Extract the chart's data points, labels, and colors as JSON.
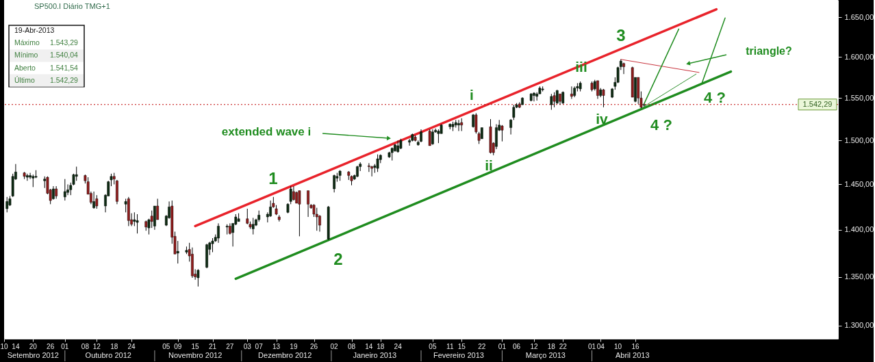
{
  "chart_data": {
    "type": "candlestick",
    "title": "SP500.I Diário TMG+1",
    "x": [
      "2012-09-11",
      "2012-09-12",
      "2012-09-13",
      "2012-09-14",
      "2012-09-17",
      "2012-09-18",
      "2012-09-19",
      "2012-09-20",
      "2012-09-21",
      "2012-09-24",
      "2012-09-25",
      "2012-09-26",
      "2012-09-27",
      "2012-09-28",
      "2012-10-01",
      "2012-10-02",
      "2012-10-03",
      "2012-10-04",
      "2012-10-05",
      "2012-10-08",
      "2012-10-09",
      "2012-10-10",
      "2012-10-11",
      "2012-10-12",
      "2012-10-15",
      "2012-10-16",
      "2012-10-17",
      "2012-10-18",
      "2012-10-19",
      "2012-10-22",
      "2012-10-23",
      "2012-10-24",
      "2012-10-25",
      "2012-10-26",
      "2012-10-29",
      "2012-10-30",
      "2012-10-31",
      "2012-11-01",
      "2012-11-02",
      "2012-11-05",
      "2012-11-06",
      "2012-11-07",
      "2012-11-08",
      "2012-11-09",
      "2012-11-12",
      "2012-11-13",
      "2012-11-14",
      "2012-11-15",
      "2012-11-16",
      "2012-11-19",
      "2012-11-20",
      "2012-11-21",
      "2012-11-22",
      "2012-11-23",
      "2012-11-26",
      "2012-11-27",
      "2012-11-28",
      "2012-11-29",
      "2012-11-30",
      "2012-12-03",
      "2012-12-04",
      "2012-12-05",
      "2012-12-06",
      "2012-12-07",
      "2012-12-10",
      "2012-12-11",
      "2012-12-12",
      "2012-12-13",
      "2012-12-14",
      "2012-12-17",
      "2012-12-18",
      "2012-12-19",
      "2012-12-20",
      "2012-12-21",
      "2012-12-24",
      "2012-12-25",
      "2012-12-26",
      "2012-12-27",
      "2012-12-28",
      "2012-12-31",
      "2013-01-02",
      "2013-01-03",
      "2013-01-04",
      "2013-01-07",
      "2013-01-08",
      "2013-01-09",
      "2013-01-10",
      "2013-01-11",
      "2013-01-14",
      "2013-01-15",
      "2013-01-16",
      "2013-01-17",
      "2013-01-18",
      "2013-01-21",
      "2013-01-22",
      "2013-01-23",
      "2013-01-24",
      "2013-01-25",
      "2013-01-28",
      "2013-01-29",
      "2013-01-30",
      "2013-01-31",
      "2013-02-01",
      "2013-02-04",
      "2013-02-05",
      "2013-02-06",
      "2013-02-07",
      "2013-02-08",
      "2013-02-11",
      "2013-02-12",
      "2013-02-13",
      "2013-02-14",
      "2013-02-15",
      "2013-02-19",
      "2013-02-20",
      "2013-02-21",
      "2013-02-22",
      "2013-02-25",
      "2013-02-26",
      "2013-02-27",
      "2013-02-28",
      "2013-03-01",
      "2013-03-04",
      "2013-03-05",
      "2013-03-06",
      "2013-03-07",
      "2013-03-08",
      "2013-03-11",
      "2013-03-12",
      "2013-03-13",
      "2013-03-14",
      "2013-03-15",
      "2013-03-18",
      "2013-03-19",
      "2013-03-20",
      "2013-03-21",
      "2013-03-22",
      "2013-03-25",
      "2013-03-26",
      "2013-03-27",
      "2013-03-28",
      "2013-04-01",
      "2013-04-02",
      "2013-04-03",
      "2013-04-04",
      "2013-04-05",
      "2013-04-08",
      "2013-04-09",
      "2013-04-10",
      "2013-04-11",
      "2013-04-12",
      "2013-04-15",
      "2013-04-16",
      "2013-04-17",
      "2013-04-18",
      "2013-04-19"
    ],
    "ohlc": [
      [
        1423,
        1436,
        1419,
        1431
      ],
      [
        1427,
        1437,
        1426,
        1434
      ],
      [
        1437,
        1462,
        1436,
        1459
      ],
      [
        1456,
        1473,
        1455,
        1464
      ],
      [
        1463,
        1464,
        1456,
        1459
      ],
      [
        1458,
        1462,
        1454,
        1460
      ],
      [
        1458,
        1463,
        1456,
        1460
      ],
      [
        1457,
        1461,
        1447,
        1459
      ],
      [
        1458,
        1466,
        1457,
        1459
      ],
      [
        1454,
        1459,
        1446,
        1456
      ],
      [
        1458,
        1459,
        1439,
        1440
      ],
      [
        1444,
        1445,
        1428,
        1432
      ],
      [
        1434,
        1448,
        1433,
        1445
      ],
      [
        1445,
        1448,
        1434,
        1437
      ],
      [
        1436,
        1456,
        1432,
        1442
      ],
      [
        1441,
        1450,
        1438,
        1444
      ],
      [
        1444,
        1452,
        1438,
        1449
      ],
      [
        1450,
        1462,
        1449,
        1461
      ],
      [
        1459,
        1470,
        1454,
        1461
      ],
      [
        1460,
        1461,
        1451,
        1454
      ],
      [
        1453,
        1458,
        1439,
        1439
      ],
      [
        1440,
        1442,
        1428,
        1430
      ],
      [
        1424,
        1442,
        1423,
        1431
      ],
      [
        1434,
        1438,
        1423,
        1426
      ],
      [
        1426,
        1439,
        1419,
        1438
      ],
      [
        1437,
        1454,
        1437,
        1453
      ],
      [
        1455,
        1462,
        1448,
        1459
      ],
      [
        1459,
        1463,
        1450,
        1456
      ],
      [
        1454,
        1455,
        1428,
        1431
      ],
      [
        1428,
        1434,
        1419,
        1431
      ],
      [
        1434,
        1436,
        1404,
        1410
      ],
      [
        1411,
        1418,
        1404,
        1406
      ],
      [
        1409,
        1419,
        1404,
        1411
      ],
      [
        1408,
        1417,
        1396,
        1410
      ],
      [
        1409,
        1410,
        1399,
        1403
      ],
      [
        1402,
        1412,
        1395,
        1411
      ],
      [
        1415,
        1421,
        1402,
        1409
      ],
      [
        1404,
        1426,
        1400,
        1426
      ],
      [
        1426,
        1434,
        1411,
        1411
      ],
      [
        1405,
        1416,
        1404,
        1415
      ],
      [
        1413,
        1431,
        1412,
        1425
      ],
      [
        1426,
        1432,
        1385,
        1392
      ],
      [
        1393,
        1398,
        1374,
        1374
      ],
      [
        1375,
        1388,
        1364,
        1377
      ],
      [
        1376,
        1382,
        1374,
        1378
      ],
      [
        1379,
        1386,
        1366,
        1372
      ],
      [
        1374,
        1381,
        1349,
        1351
      ],
      [
        1353,
        1358,
        1347,
        1350
      ],
      [
        1349,
        1358,
        1340,
        1357
      ],
      [
        1360,
        1385,
        1359,
        1384
      ],
      [
        1379,
        1387,
        1373,
        1386
      ],
      [
        1385,
        1391,
        1376,
        1388
      ],
      [
        1388,
        1395,
        1387,
        1392
      ],
      [
        1391,
        1407,
        1386,
        1404
      ],
      [
        1403,
        1406,
        1395,
        1404
      ],
      [
        1404,
        1407,
        1395,
        1396
      ],
      [
        1397,
        1407,
        1382,
        1407
      ],
      [
        1406,
        1417,
        1405,
        1414
      ],
      [
        1409,
        1418,
        1409,
        1412
      ],
      [
        1412,
        1423,
        1406,
        1407
      ],
      [
        1406,
        1409,
        1401,
        1403
      ],
      [
        1401,
        1413,
        1395,
        1406
      ],
      [
        1405,
        1412,
        1404,
        1411
      ],
      [
        1411,
        1421,
        1409,
        1416
      ],
      [
        1414,
        1419,
        1408,
        1417
      ],
      [
        1415,
        1432,
        1414,
        1425
      ],
      [
        1429,
        1436,
        1424,
        1425
      ],
      [
        1423,
        1427,
        1416,
        1417
      ],
      [
        1414,
        1416,
        1409,
        1411
      ],
      [
        1419,
        1429,
        1418,
        1428
      ],
      [
        1431,
        1448,
        1428,
        1445
      ],
      [
        1442,
        1448,
        1432,
        1433
      ],
      [
        1441,
        1442,
        1429,
        1429
      ],
      [
        1443,
        1443,
        1393,
        1428
      ],
      [
        1443,
        1443,
        1414,
        1428
      ],
      [
        1427,
        1428,
        1423,
        1424
      ],
      [
        1427,
        1428,
        1414,
        1417
      ],
      [
        1417,
        1424,
        1399,
        1414
      ],
      [
        1415,
        1416,
        1398,
        1405
      ],
      [
        1390,
        1426,
        1389,
        1425
      ],
      [
        1445,
        1461,
        1441,
        1460
      ],
      [
        1457,
        1463,
        1453,
        1459
      ],
      [
        1460,
        1466,
        1454,
        1465
      ],
      [
        1464,
        1465,
        1455,
        1460
      ],
      [
        1459,
        1460,
        1449,
        1454
      ],
      [
        1456,
        1461,
        1455,
        1460
      ],
      [
        1459,
        1471,
        1458,
        1470
      ],
      [
        1470,
        1475,
        1465,
        1473
      ],
      [
        1471,
        1474,
        1464,
        1470
      ],
      [
        1470,
        1471,
        1459,
        1468
      ],
      [
        1469,
        1473,
        1463,
        1471
      ],
      [
        1468,
        1484,
        1464,
        1479
      ],
      [
        1478,
        1484,
        1474,
        1483
      ],
      [
        1481,
        1487,
        1480,
        1486
      ],
      [
        1486,
        1492,
        1477,
        1491
      ],
      [
        1488,
        1496,
        1487,
        1495
      ],
      [
        1487,
        1500,
        1486,
        1494
      ],
      [
        1491,
        1502,
        1490,
        1500
      ],
      [
        1498,
        1502,
        1494,
        1500
      ],
      [
        1500,
        1508,
        1499,
        1507
      ],
      [
        1504,
        1506,
        1499,
        1500
      ],
      [
        1495,
        1500,
        1494,
        1498
      ],
      [
        1499,
        1513,
        1498,
        1510
      ],
      [
        1511,
        1513,
        1494,
        1494
      ],
      [
        1496,
        1513,
        1495,
        1510
      ],
      [
        1510,
        1514,
        1509,
        1512
      ],
      [
        1508,
        1513,
        1497,
        1511
      ],
      [
        1508,
        1519,
        1508,
        1518
      ],
      [
        1516,
        1520,
        1513,
        1519
      ],
      [
        1516,
        1522,
        1511,
        1519
      ],
      [
        1518,
        1524,
        1515,
        1521
      ],
      [
        1518,
        1524,
        1511,
        1520
      ],
      [
        1521,
        1526,
        1511,
        1518
      ],
      [
        1516,
        1531,
        1515,
        1530
      ],
      [
        1530,
        1532,
        1508,
        1510
      ],
      [
        1508,
        1510,
        1496,
        1500
      ],
      [
        1502,
        1515,
        1502,
        1515
      ],
      [
        1516,
        1525,
        1485,
        1486
      ],
      [
        1497,
        1498,
        1483,
        1486
      ],
      [
        1493,
        1519,
        1490,
        1515
      ],
      [
        1512,
        1524,
        1511,
        1518
      ],
      [
        1517,
        1518,
        1499,
        1512
      ],
      [
        1515,
        1525,
        1507,
        1524
      ],
      [
        1527,
        1542,
        1524,
        1539
      ],
      [
        1539,
        1544,
        1538,
        1542
      ],
      [
        1543,
        1545,
        1538,
        1539
      ],
      [
        1542,
        1551,
        1542,
        1550
      ],
      [
        1547,
        1556,
        1546,
        1555
      ],
      [
        1553,
        1557,
        1546,
        1556
      ],
      [
        1552,
        1557,
        1547,
        1555
      ],
      [
        1555,
        1564,
        1555,
        1562
      ],
      [
        1560,
        1564,
        1558,
        1561
      ],
      [
        1542,
        1555,
        1536,
        1552
      ],
      [
        1553,
        1557,
        1539,
        1546
      ],
      [
        1544,
        1560,
        1543,
        1559
      ],
      [
        1555,
        1555,
        1542,
        1546
      ],
      [
        1544,
        1558,
        1543,
        1557
      ],
      [
        1555,
        1564,
        1549,
        1552
      ],
      [
        1553,
        1564,
        1551,
        1562
      ],
      [
        1562,
        1568,
        1558,
        1564
      ],
      [
        1561,
        1570,
        1558,
        1568
      ],
      [
        1568,
        1570,
        1558,
        1560
      ],
      [
        1561,
        1572,
        1559,
        1570
      ],
      [
        1571,
        1571,
        1549,
        1553
      ],
      [
        1553,
        1562,
        1551,
        1560
      ],
      [
        1560,
        1561,
        1539,
        1553
      ],
      [
        1551,
        1562,
        1550,
        1561
      ],
      [
        1564,
        1575,
        1560,
        1569
      ],
      [
        1569,
        1588,
        1568,
        1587
      ],
      [
        1588,
        1597,
        1584,
        1595
      ],
      [
        1592,
        1593,
        1579,
        1588
      ],
      [
        1587,
        1588,
        1551,
        1551
      ],
      [
        1546,
        1575,
        1545,
        1575
      ],
      [
        1575,
        1575,
        1543,
        1550
      ],
      [
        1550,
        1558,
        1538,
        1539
      ],
      [
        1541.54,
        1543.29,
        1540.04,
        1542.29
      ]
    ],
    "colors": [
      "#0d2a12",
      "#0d2a12",
      "#0d2a12",
      "#0d2a12",
      "#8e1b1b",
      "#0d2a12",
      "#0d2a12",
      "#0d2a12",
      "#0d2a12",
      "#0d2a12",
      "#8e1b1b",
      "#8e1b1b",
      "#0d2a12",
      "#8e1b1b",
      "#0d2a12",
      "#0d2a12",
      "#0d2a12",
      "#0d2a12",
      "#0d2a12",
      "#8e1b1b",
      "#8e1b1b",
      "#8e1b1b",
      "#0d2a12",
      "#8e1b1b",
      "#0d2a12",
      "#0d2a12",
      "#0d2a12",
      "#8e1b1b",
      "#8e1b1b",
      "#0d2a12",
      "#8e1b1b",
      "#8e1b1b",
      "#0d2a12",
      "#0d2a12",
      "#8e1b1b",
      "#0d2a12",
      "#8e1b1b",
      "#0d2a12",
      "#8e1b1b",
      "#0d2a12",
      "#0d2a12",
      "#8e1b1b",
      "#8e1b1b",
      "#0d2a12",
      "#0d2a12",
      "#8e1b1b",
      "#8e1b1b",
      "#8e1b1b",
      "#0d2a12",
      "#0d2a12",
      "#0d2a12",
      "#0d2a12",
      "#0d2a12",
      "#0d2a12",
      "#0d2a12",
      "#8e1b1b",
      "#0d2a12",
      "#0d2a12",
      "#0d2a12",
      "#8e1b1b",
      "#8e1b1b",
      "#0d2a12",
      "#0d2a12",
      "#0d2a12",
      "#0d2a12",
      "#0d2a12",
      "#8e1b1b",
      "#8e1b1b",
      "#8e1b1b",
      "#0d2a12",
      "#0d2a12",
      "#8e1b1b",
      "#8e1b1b",
      "#8e1b1b",
      "#8e1b1b",
      "#8e1b1b",
      "#8e1b1b",
      "#8e1b1b",
      "#8e1b1b",
      "#0d2a12",
      "#0d2a12",
      "#0d2a12",
      "#0d2a12",
      "#8e1b1b",
      "#8e1b1b",
      "#0d2a12",
      "#0d2a12",
      "#0d2a12",
      "#8e1b1b",
      "#8e1b1b",
      "#0d2a12",
      "#0d2a12",
      "#0d2a12",
      "#0d2a12",
      "#0d2a12",
      "#0d2a12",
      "#0d2a12",
      "#0d2a12",
      "#0d2a12",
      "#0d2a12",
      "#8e1b1b",
      "#0d2a12",
      "#0d2a12",
      "#8e1b1b",
      "#0d2a12",
      "#0d2a12",
      "#0d2a12",
      "#0d2a12",
      "#0d2a12",
      "#0d2a12",
      "#0d2a12",
      "#0d2a12",
      "#8e1b1b",
      "#0d2a12",
      "#8e1b1b",
      "#8e1b1b",
      "#0d2a12",
      "#8e1b1b",
      "#8e1b1b",
      "#0d2a12",
      "#0d2a12",
      "#8e1b1b",
      "#0d2a12",
      "#0d2a12",
      "#0d2a12",
      "#8e1b1b",
      "#0d2a12",
      "#0d2a12",
      "#0d2a12",
      "#0d2a12",
      "#0d2a12",
      "#0d2a12",
      "#0d2a12",
      "#8e1b1b",
      "#0d2a12",
      "#8e1b1b",
      "#0d2a12",
      "#8e1b1b",
      "#0d2a12",
      "#0d2a12",
      "#0d2a12",
      "#8e1b1b",
      "#0d2a12",
      "#8e1b1b",
      "#0d2a12",
      "#8e1b1b",
      "#0d2a12",
      "#0d2a12",
      "#0d2a12",
      "#0d2a12",
      "#8e1b1b",
      "#8e1b1b",
      "#0d2a12",
      "#8e1b1b",
      "#8e1b1b",
      "#0d2a12"
    ],
    "xlim": [
      "2012-09-10",
      "2013-06-25"
    ],
    "xticks": [
      {
        "value": "2012-09-10",
        "label": "10"
      },
      {
        "value": "2012-09-14",
        "label": "14"
      },
      {
        "value": "2012-09-20",
        "label": "20"
      },
      {
        "value": "2012-09-26",
        "label": "26"
      },
      {
        "value": "2012-10-01",
        "label": "01"
      },
      {
        "value": "2012-10-08",
        "label": "08"
      },
      {
        "value": "2012-10-12",
        "label": "12"
      },
      {
        "value": "2012-10-18",
        "label": "18"
      },
      {
        "value": "2012-10-24",
        "label": "24"
      },
      {
        "value": "2012-11-05",
        "label": "05"
      },
      {
        "value": "2012-11-09",
        "label": "09"
      },
      {
        "value": "2012-11-15",
        "label": "15"
      },
      {
        "value": "2012-11-21",
        "label": "21"
      },
      {
        "value": "2012-11-27",
        "label": "27"
      },
      {
        "value": "2012-12-03",
        "label": "03"
      },
      {
        "value": "2012-12-07",
        "label": "07"
      },
      {
        "value": "2012-12-13",
        "label": "13"
      },
      {
        "value": "2012-12-19",
        "label": "19"
      },
      {
        "value": "2012-12-26",
        "label": "26"
      },
      {
        "value": "2013-01-02",
        "label": "02"
      },
      {
        "value": "2013-01-08",
        "label": "08"
      },
      {
        "value": "2013-01-14",
        "label": "14"
      },
      {
        "value": "2013-01-18",
        "label": "18"
      },
      {
        "value": "2013-01-24",
        "label": "24"
      },
      {
        "value": "2013-02-05",
        "label": "05"
      },
      {
        "value": "2013-02-11",
        "label": "11"
      },
      {
        "value": "2013-02-15",
        "label": "15"
      },
      {
        "value": "2013-02-22",
        "label": "22"
      },
      {
        "value": "2013-03-01",
        "label": "01"
      },
      {
        "value": "2013-03-06",
        "label": "06"
      },
      {
        "value": "2013-03-12",
        "label": "12"
      },
      {
        "value": "2013-03-18",
        "label": "18"
      },
      {
        "value": "2013-03-22",
        "label": "22"
      },
      {
        "value": "2013-04-01",
        "label": "01"
      },
      {
        "value": "2013-04-04",
        "label": "04"
      },
      {
        "value": "2013-04-10",
        "label": "10"
      },
      {
        "value": "2013-04-16",
        "label": "16"
      }
    ],
    "x2lim": [
      "2012-09-10",
      "2013-06-25"
    ],
    "x2ticks": [
      {
        "value": "2012-09-20",
        "label": "Setembro 2012"
      },
      {
        "value": "2012-10-16",
        "label": "Outubro 2012"
      },
      {
        "value": "2012-11-15",
        "label": "Novembro 2012"
      },
      {
        "value": "2012-12-16",
        "label": "Dezembro 2012"
      },
      {
        "value": "2013-01-16",
        "label": "Janeiro 2013"
      },
      {
        "value": "2013-02-14",
        "label": "Fevereiro 2013"
      },
      {
        "value": "2013-03-16",
        "label": "Março 2013"
      },
      {
        "value": "2013-04-15",
        "label": "Abril 2013"
      }
    ],
    "ylim": [
      1287,
      1672
    ],
    "yticks": [
      {
        "value": 1300,
        "label": "1.300,00"
      },
      {
        "value": 1350,
        "label": "1.350,00"
      },
      {
        "value": 1400,
        "label": "1.400,00"
      },
      {
        "value": 1450,
        "label": "1.450,00"
      },
      {
        "value": 1500,
        "label": "1.500,00"
      },
      {
        "value": 1550,
        "label": "1.550,00"
      },
      {
        "value": 1600,
        "label": "1.600,00"
      },
      {
        "value": 1650,
        "label": "1.650,00"
      }
    ],
    "log": "y",
    "ref_lines": [
      {
        "axis": "y",
        "value": 1542.29,
        "label": "1.542,29",
        "color": "#c00000",
        "line_style": "dotted"
      }
    ],
    "series": [
      {
        "type": "line",
        "color": "#e8232b",
        "x": [
          "2012-11-15",
          "2013-05-14"
        ],
        "values": [
          1404,
          1660
        ]
      },
      {
        "type": "line",
        "color": "#1f8c1f",
        "x": [
          "2012-11-29",
          "2013-05-19"
        ],
        "values": [
          1348,
          1582
        ]
      },
      {
        "type": "line",
        "color": "#c8323c",
        "x": [
          "2013-04-11",
          "2013-05-08"
        ],
        "values": [
          1597,
          1581
        ]
      },
      {
        "type": "line",
        "color": "#2f8f2f",
        "x": [
          "2013-04-19",
          "2013-05-07"
        ],
        "values": [
          1540,
          1579
        ]
      },
      {
        "type": "line",
        "color": "#1f8c1f",
        "x": [
          "2013-04-19",
          "2013-05-01"
        ],
        "values": [
          1543,
          1635
        ]
      },
      {
        "type": "line",
        "color": "#1f8c1f",
        "x": [
          "2013-05-09",
          "2013-05-17"
        ],
        "values": [
          1568,
          1649
        ]
      }
    ],
    "annotations": [
      "19-Abr-2013",
      "Máximo",
      "1.543,29",
      "Mínimo",
      "1.540,04",
      "Aberto",
      "1.541,54",
      "Último",
      "1.542,29",
      "extended wave i",
      "1",
      "2",
      "i",
      "ii",
      "iii",
      "iv",
      "3",
      "4 ?",
      "4 ?",
      "triangle?"
    ]
  }
}
